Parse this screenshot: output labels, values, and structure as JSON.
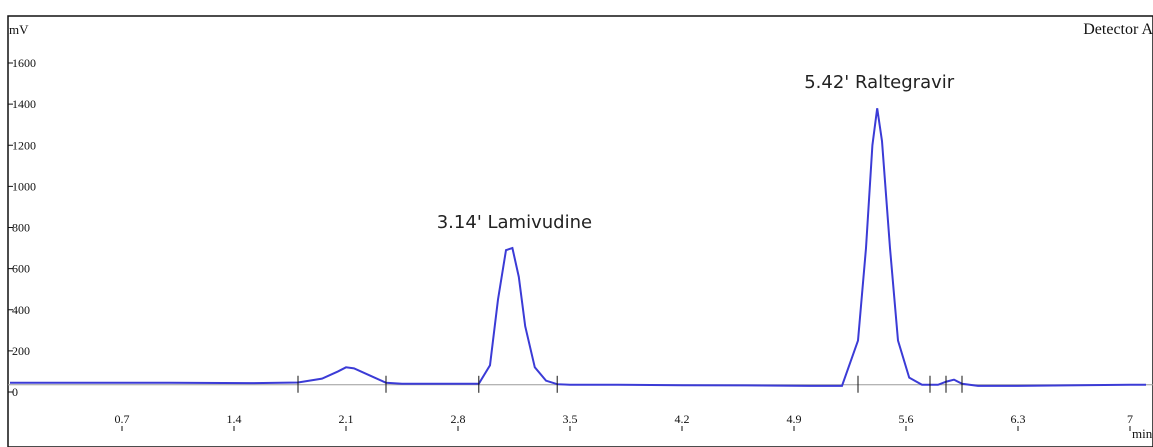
{
  "chart_data": {
    "type": "line",
    "title": "",
    "detector_label": "Detector A",
    "ylabel": "mV",
    "xlabel": "min",
    "x_ticks": [
      0.7,
      1.4,
      2.1,
      2.8,
      3.5,
      4.2,
      4.9,
      5.6,
      6.3,
      7
    ],
    "y_ticks": [
      0,
      200,
      400,
      600,
      800,
      1000,
      1200,
      1400,
      1600
    ],
    "xlim": [
      0.0,
      7.1
    ],
    "ylim": [
      -50,
      1750
    ],
    "series": [
      {
        "name": "",
        "x": [
          0.0,
          0.5,
          1.0,
          1.5,
          1.8,
          1.95,
          2.05,
          2.1,
          2.15,
          2.25,
          2.35,
          2.45,
          2.6,
          2.8,
          2.93,
          3.0,
          3.05,
          3.1,
          3.14,
          3.18,
          3.22,
          3.28,
          3.35,
          3.42,
          3.5,
          3.8,
          4.2,
          4.6,
          5.0,
          5.2,
          5.3,
          5.35,
          5.39,
          5.42,
          5.45,
          5.5,
          5.55,
          5.62,
          5.7,
          5.8,
          5.85,
          5.9,
          5.95,
          6.05,
          6.3,
          6.6,
          7.0,
          7.1
        ],
        "y": [
          45,
          45,
          45,
          43,
          46,
          65,
          100,
          120,
          115,
          80,
          45,
          40,
          40,
          40,
          40,
          130,
          450,
          690,
          700,
          560,
          320,
          120,
          55,
          38,
          35,
          35,
          33,
          32,
          30,
          30,
          250,
          700,
          1200,
          1380,
          1220,
          700,
          250,
          70,
          35,
          35,
          50,
          60,
          40,
          30,
          30,
          32,
          35,
          35
        ]
      }
    ],
    "peak_annotations": [
      {
        "label": "3.14' Lamivudine",
        "x": 3.14,
        "y": 700
      },
      {
        "label": "5.42' Raltegravir",
        "x": 5.42,
        "y": 1380
      }
    ],
    "integration_markers": [
      1.8,
      2.35,
      2.93,
      3.42,
      5.3,
      5.75,
      5.85,
      5.95
    ],
    "colors": {
      "trace": "#3b3bd6",
      "baseline": "#9c9c9c",
      "axis": "#111111"
    },
    "grid": false
  }
}
